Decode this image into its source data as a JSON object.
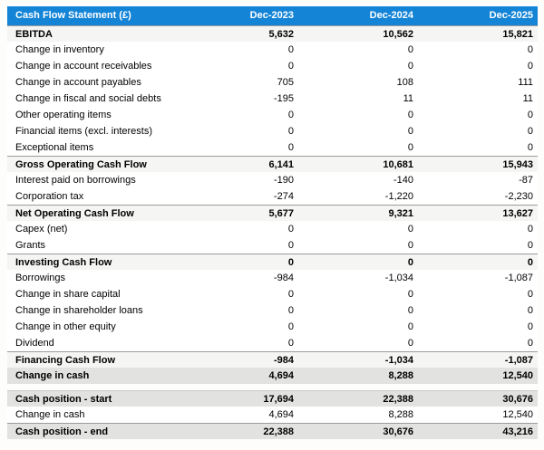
{
  "colors": {
    "header_bg": "#1484d7",
    "header_text": "#ffffff",
    "subtotal_row_bg": "#f5f5f3",
    "summary_row_bg": "#e2e2e0",
    "row_border": "#9b9b99",
    "text": "#000000"
  },
  "table": {
    "title": "Cash Flow Statement (£)",
    "columns": [
      "Dec-2023",
      "Dec-2024",
      "Dec-2025"
    ],
    "rows": [
      {
        "label": "EBITDA",
        "values": [
          "5,632",
          "10,562",
          "15,821"
        ],
        "style": "subtotal"
      },
      {
        "label": "Change in inventory",
        "values": [
          "0",
          "0",
          "0"
        ],
        "style": "normal"
      },
      {
        "label": "Change in account receivables",
        "values": [
          "0",
          "0",
          "0"
        ],
        "style": "normal"
      },
      {
        "label": "Change in account payables",
        "values": [
          "705",
          "108",
          "111"
        ],
        "style": "normal"
      },
      {
        "label": "Change in fiscal and social debts",
        "values": [
          "-195",
          "11",
          "11"
        ],
        "style": "normal"
      },
      {
        "label": "Other operating items",
        "values": [
          "0",
          "0",
          "0"
        ],
        "style": "normal"
      },
      {
        "label": "Financial items (excl. interests)",
        "values": [
          "0",
          "0",
          "0"
        ],
        "style": "normal"
      },
      {
        "label": "Exceptional items",
        "values": [
          "0",
          "0",
          "0"
        ],
        "style": "normal"
      },
      {
        "label": "Gross Operating Cash Flow",
        "values": [
          "6,141",
          "10,681",
          "15,943"
        ],
        "style": "subtotal"
      },
      {
        "label": "Interest paid on borrowings",
        "values": [
          "-190",
          "-140",
          "-87"
        ],
        "style": "normal"
      },
      {
        "label": "Corporation tax",
        "values": [
          "-274",
          "-1,220",
          "-2,230"
        ],
        "style": "normal"
      },
      {
        "label": "Net Operating Cash Flow",
        "values": [
          "5,677",
          "9,321",
          "13,627"
        ],
        "style": "subtotal"
      },
      {
        "label": "Capex (net)",
        "values": [
          "0",
          "0",
          "0"
        ],
        "style": "normal"
      },
      {
        "label": "Grants",
        "values": [
          "0",
          "0",
          "0"
        ],
        "style": "normal"
      },
      {
        "label": "Investing Cash Flow",
        "values": [
          "0",
          "0",
          "0"
        ],
        "style": "subtotal"
      },
      {
        "label": "Borrowings",
        "values": [
          "-984",
          "-1,034",
          "-1,087"
        ],
        "style": "normal"
      },
      {
        "label": "Change in share capital",
        "values": [
          "0",
          "0",
          "0"
        ],
        "style": "normal"
      },
      {
        "label": "Change in shareholder loans",
        "values": [
          "0",
          "0",
          "0"
        ],
        "style": "normal"
      },
      {
        "label": "Change in other equity",
        "values": [
          "0",
          "0",
          "0"
        ],
        "style": "normal"
      },
      {
        "label": "Dividend",
        "values": [
          "0",
          "0",
          "0"
        ],
        "style": "normal"
      },
      {
        "label": "Financing Cash Flow",
        "values": [
          "-984",
          "-1,034",
          "-1,087"
        ],
        "style": "subtotal"
      },
      {
        "label": "Change in cash",
        "values": [
          "4,694",
          "8,288",
          "12,540"
        ],
        "style": "summary"
      },
      {
        "label": "Cash position - start",
        "values": [
          "17,694",
          "22,388",
          "30,676"
        ],
        "style": "summary-start",
        "gap_before": true
      },
      {
        "label": "Change in cash",
        "values": [
          "4,694",
          "8,288",
          "12,540"
        ],
        "style": "normal"
      },
      {
        "label": "Cash position - end",
        "values": [
          "22,388",
          "30,676",
          "43,216"
        ],
        "style": "summary-end"
      }
    ]
  }
}
